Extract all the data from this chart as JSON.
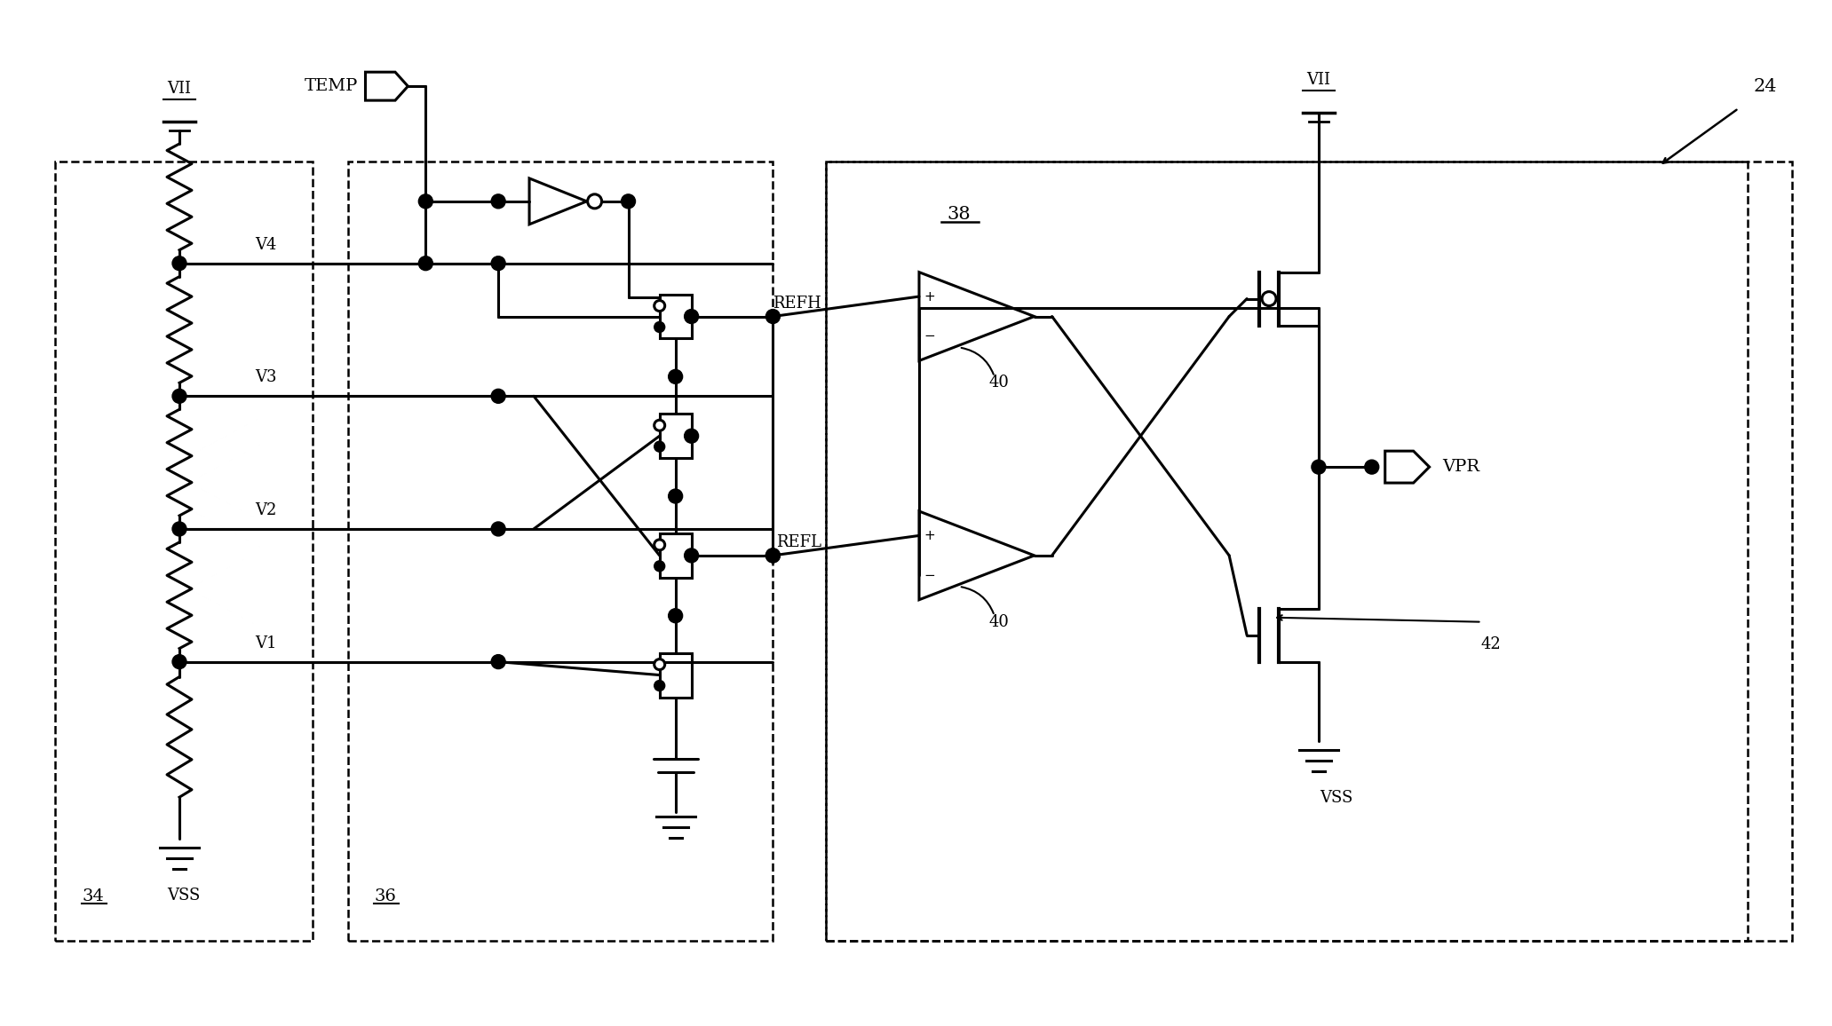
{
  "background_color": "#ffffff",
  "fig_width": 20.63,
  "fig_height": 11.56,
  "labels": {
    "VII_left": "VII",
    "VII_right": "VII",
    "VSS_left": "VSS",
    "VSS_right": "VSS",
    "TEMP": "TEMP",
    "V1": "V1",
    "V2": "V2",
    "V3": "V3",
    "V4": "V4",
    "REFH": "REFH",
    "REFL": "REFL",
    "VPR": "VPR",
    "label_34": "34",
    "label_36": "36",
    "label_38": "38",
    "label_40a": "40",
    "label_40b": "40",
    "label_42": "42",
    "label_24": "24"
  }
}
